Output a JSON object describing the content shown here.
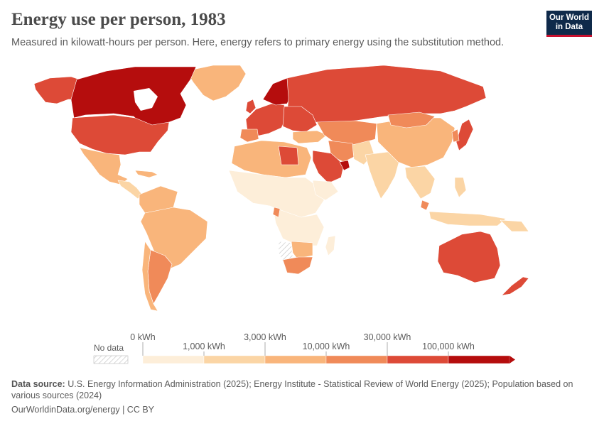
{
  "header": {
    "title": "Energy use per person, 1983",
    "subtitle": "Measured in kilowatt-hours per person. Here, energy refers to primary energy using the substitution method."
  },
  "logo": {
    "line1": "Our World",
    "line2": "in Data"
  },
  "legend": {
    "no_data_label": "No data",
    "upper_ticks": [
      "0 kWh",
      "3,000 kWh",
      "30,000 kWh"
    ],
    "lower_ticks": [
      "1,000 kWh",
      "10,000 kWh",
      "100,000 kWh"
    ],
    "bin_colors": [
      "#fdeed9",
      "#fbd5a5",
      "#f9b57b",
      "#f08a59",
      "#dd4a37",
      "#b50d0d"
    ]
  },
  "footer": {
    "source_label": "Data source:",
    "source_text": "U.S. Energy Information Administration (2025); Energy Institute - Statistical Review of World Energy (2025); Population based on various sources (2024)",
    "url": "OurWorldinData.org/energy | CC BY"
  },
  "colors": {
    "no_data": "#d9d9d9",
    "bin1": "#fdeed9",
    "bin2": "#fbd5a5",
    "bin3": "#f9b57b",
    "bin4": "#f08a59",
    "bin5": "#dd4a37",
    "bin6": "#b50d0d"
  }
}
